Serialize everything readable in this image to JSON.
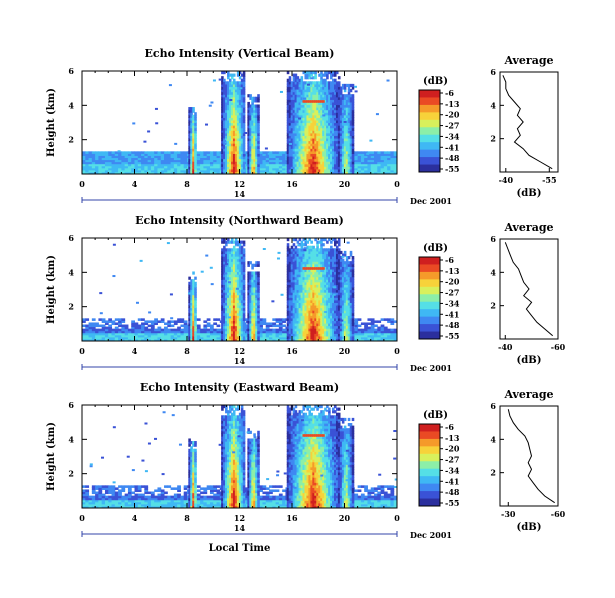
{
  "chart_data": [
    {
      "type": "heatmap",
      "title": "Echo Intensity (Vertical Beam)",
      "ylabel": "Height (km)",
      "xlim": [
        0,
        24
      ],
      "ylim": [
        0,
        6
      ],
      "xticks": [
        "0",
        "4",
        "8",
        "12",
        "16",
        "20",
        "0"
      ],
      "yticks": [
        "6",
        "4",
        "2"
      ],
      "date_axis": {
        "label": "14",
        "suffix": "Dec 2001"
      },
      "colorbar": {
        "unit": "(dB)",
        "ticks": [
          "-6",
          "-13",
          "-20",
          "-27",
          "-34",
          "-41",
          "-48",
          "-55"
        ]
      },
      "avg_profile": {
        "title": "Average",
        "xlabel": "(dB)",
        "xticks": [
          "-40",
          "-55"
        ],
        "xlim": [
          -38,
          -58
        ],
        "yticks": [
          "6",
          "4",
          "2"
        ],
        "height_km": [
          0.2,
          0.6,
          1.0,
          1.4,
          1.8,
          2.2,
          2.6,
          3.0,
          3.4,
          3.8,
          4.2,
          4.6,
          5.0,
          5.4,
          5.8
        ],
        "db": [
          -56,
          -52,
          -48,
          -46,
          -43,
          -45,
          -44,
          -46,
          -44,
          -45,
          -43,
          -41,
          -40,
          -40,
          -39
        ]
      }
    },
    {
      "type": "heatmap",
      "title": "Echo Intensity (Northward Beam)",
      "ylabel": "Height (km)",
      "xlim": [
        0,
        24
      ],
      "ylim": [
        0,
        6
      ],
      "xticks": [
        "0",
        "4",
        "8",
        "12",
        "16",
        "20",
        "0"
      ],
      "yticks": [
        "6",
        "4",
        "2"
      ],
      "date_axis": {
        "label": "14",
        "suffix": "Dec 2001"
      },
      "colorbar": {
        "unit": "(dB)",
        "ticks": [
          "-6",
          "-13",
          "-20",
          "-27",
          "-34",
          "-41",
          "-48",
          "-55"
        ]
      },
      "avg_profile": {
        "title": "Average",
        "xlabel": "(dB)",
        "xticks": [
          "-40",
          "-60"
        ],
        "xlim": [
          -38,
          -60
        ],
        "yticks": [
          "6",
          "4",
          "2"
        ],
        "height_km": [
          0.2,
          0.6,
          1.0,
          1.4,
          1.8,
          2.2,
          2.6,
          3.0,
          3.4,
          3.8,
          4.2,
          4.6,
          5.0,
          5.4,
          5.8
        ],
        "db": [
          -58,
          -55,
          -52,
          -50,
          -48,
          -50,
          -47,
          -49,
          -47,
          -46,
          -45,
          -43,
          -42,
          -41,
          -40
        ]
      }
    },
    {
      "type": "heatmap",
      "title": "Echo Intensity (Eastward Beam)",
      "ylabel": "Height (km)",
      "xlabel": "Local Time",
      "xlim": [
        0,
        24
      ],
      "ylim": [
        0,
        6
      ],
      "xticks": [
        "0",
        "4",
        "8",
        "12",
        "16",
        "20",
        "0"
      ],
      "yticks": [
        "6",
        "4",
        "2"
      ],
      "date_axis": {
        "label": "14",
        "suffix": "Dec 2001"
      },
      "colorbar": {
        "unit": "(dB)",
        "ticks": [
          "-6",
          "-13",
          "-20",
          "-27",
          "-34",
          "-41",
          "-48",
          "-55"
        ]
      },
      "avg_profile": {
        "title": "Average",
        "xlabel": "(dB)",
        "xticks": [
          "-30",
          "-60"
        ],
        "xlim": [
          -25,
          -60
        ],
        "yticks": [
          "6",
          "4",
          "2"
        ],
        "height_km": [
          0.2,
          0.6,
          1.0,
          1.4,
          1.8,
          2.2,
          2.6,
          3.0,
          3.4,
          3.8,
          4.2,
          4.6,
          5.0,
          5.4,
          5.8
        ],
        "db": [
          -58,
          -52,
          -48,
          -45,
          -42,
          -44,
          -42,
          -44,
          -43,
          -42,
          -40,
          -36,
          -33,
          -31,
          -30
        ]
      }
    }
  ],
  "colors": {
    "scale": [
      "#2b2f9e",
      "#3a52d6",
      "#3f88f2",
      "#3fb8f4",
      "#55dfe6",
      "#8cefa8",
      "#d8f05c",
      "#f7d23a",
      "#f59a2a",
      "#ea4a24",
      "#cf1f1f"
    ]
  }
}
